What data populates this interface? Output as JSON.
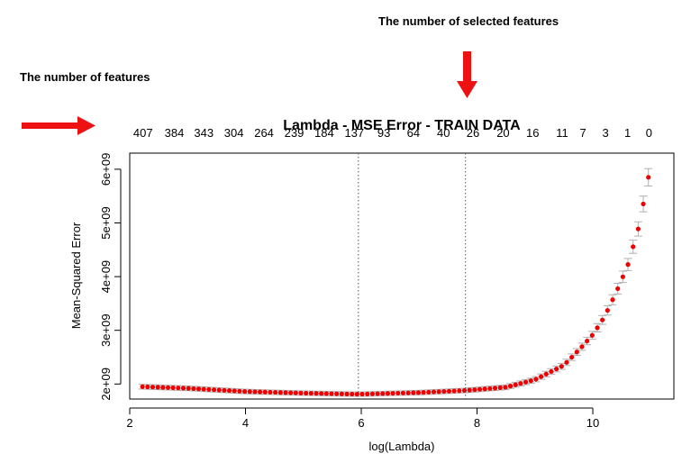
{
  "annotations": {
    "selected_features": "The number of selected features",
    "features": "The number of features"
  },
  "colors": {
    "arrow": "#ee1111",
    "point": "#ee0000",
    "errorbar": "#b0b0b0",
    "axis": "#000000",
    "vline": "#555555"
  },
  "chart_data": {
    "type": "scatter",
    "title": "Lambda - MSE Error - TRAIN DATA",
    "xlabel": "log(Lambda)",
    "ylabel": "Mean-Squared Error",
    "xlim": [
      2.0,
      11.4
    ],
    "ylim": [
      1720000000.0,
      6300000000.0
    ],
    "x_ticks": [
      2,
      4,
      6,
      8,
      10
    ],
    "x_tick_labels": [
      "2",
      "4",
      "6",
      "8",
      "10"
    ],
    "y_ticks": [
      2000000000.0,
      3000000000.0,
      4000000000.0,
      5000000000.0,
      6000000000.0
    ],
    "y_tick_labels": [
      "2e+09",
      "3e+09",
      "4e+09",
      "5e+09",
      "6e+09"
    ],
    "top_axis_labels": [
      {
        "x": 2.23,
        "label": "407"
      },
      {
        "x": 2.77,
        "label": "384"
      },
      {
        "x": 3.28,
        "label": "343"
      },
      {
        "x": 3.8,
        "label": "304"
      },
      {
        "x": 4.32,
        "label": "264"
      },
      {
        "x": 4.84,
        "label": "239"
      },
      {
        "x": 5.36,
        "label": "184"
      },
      {
        "x": 5.88,
        "label": "137"
      },
      {
        "x": 6.39,
        "label": "93"
      },
      {
        "x": 6.9,
        "label": "64"
      },
      {
        "x": 7.42,
        "label": "40"
      },
      {
        "x": 7.93,
        "label": "26"
      },
      {
        "x": 8.45,
        "label": "20"
      },
      {
        "x": 8.96,
        "label": "16"
      },
      {
        "x": 9.47,
        "label": "11"
      },
      {
        "x": 9.83,
        "label": "7"
      },
      {
        "x": 10.22,
        "label": "3"
      },
      {
        "x": 10.6,
        "label": "1"
      },
      {
        "x": 10.97,
        "label": "0"
      }
    ],
    "vlines": [
      5.95,
      7.8
    ],
    "points": {
      "x_start": 2.22,
      "x_end": 10.96,
      "count": 100,
      "key_x": [
        2.22,
        3.0,
        4.0,
        5.0,
        5.95,
        7.0,
        7.8,
        8.5,
        9.0,
        9.5,
        9.8,
        10.0,
        10.2,
        10.4,
        10.6,
        10.8,
        10.96
      ],
      "key_y": [
        1950000000.0,
        1920000000.0,
        1860000000.0,
        1830000000.0,
        1810000000.0,
        1840000000.0,
        1880000000.0,
        1940000000.0,
        2080000000.0,
        2350000000.0,
        2680000000.0,
        2920000000.0,
        3250000000.0,
        3700000000.0,
        4200000000.0,
        4950000000.0,
        5850000000.0
      ],
      "err_base": 40000000.0,
      "err_frac": 0.03
    }
  }
}
